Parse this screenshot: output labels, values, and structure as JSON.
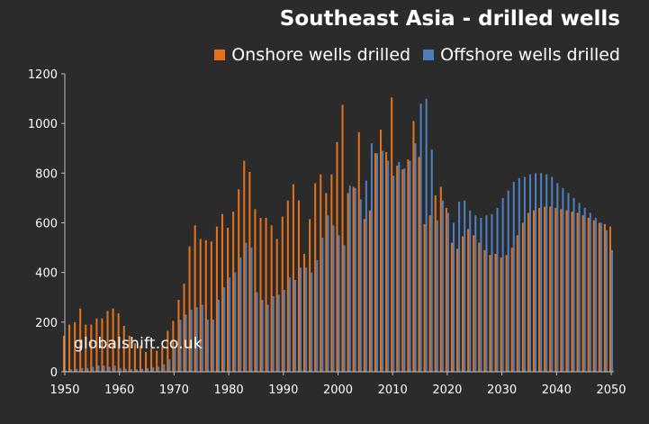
{
  "chart_data": {
    "type": "bar",
    "title": "Southeast Asia - drilled wells",
    "xlabel": "",
    "ylabel": "",
    "ylim": [
      0,
      1200
    ],
    "yticks": [
      0,
      200,
      400,
      600,
      800,
      1000,
      1200
    ],
    "xticks": [
      1950,
      1960,
      1970,
      1980,
      1990,
      2000,
      2010,
      2020,
      2030,
      2040,
      2050
    ],
    "legend_position": "top-right",
    "grid": false,
    "watermark": "globalshift.co.uk",
    "x": [
      1950,
      1951,
      1952,
      1953,
      1954,
      1955,
      1956,
      1957,
      1958,
      1959,
      1960,
      1961,
      1962,
      1963,
      1964,
      1965,
      1966,
      1967,
      1968,
      1969,
      1970,
      1971,
      1972,
      1973,
      1974,
      1975,
      1976,
      1977,
      1978,
      1979,
      1980,
      1981,
      1982,
      1983,
      1984,
      1985,
      1986,
      1987,
      1988,
      1989,
      1990,
      1991,
      1992,
      1993,
      1994,
      1995,
      1996,
      1997,
      1998,
      1999,
      2000,
      2001,
      2002,
      2003,
      2004,
      2005,
      2006,
      2007,
      2008,
      2009,
      2010,
      2011,
      2012,
      2013,
      2014,
      2015,
      2016,
      2017,
      2018,
      2019,
      2020,
      2021,
      2022,
      2023,
      2024,
      2025,
      2026,
      2027,
      2028,
      2029,
      2030,
      2031,
      2032,
      2033,
      2034,
      2035,
      2036,
      2037,
      2038,
      2039,
      2040,
      2041,
      2042,
      2043,
      2044,
      2045,
      2046,
      2047,
      2048,
      2049,
      2050
    ],
    "series": [
      {
        "name": "Onshore wells drilled",
        "color": "#e3711c",
        "values": [
          145,
          190,
          200,
          255,
          190,
          190,
          215,
          215,
          245,
          255,
          235,
          185,
          145,
          115,
          105,
          80,
          95,
          85,
          100,
          165,
          205,
          290,
          355,
          505,
          590,
          535,
          530,
          525,
          585,
          635,
          580,
          645,
          735,
          850,
          805,
          655,
          620,
          620,
          590,
          535,
          625,
          690,
          755,
          690,
          475,
          615,
          760,
          795,
          720,
          795,
          925,
          1075,
          720,
          745,
          965,
          615,
          650,
          880,
          975,
          885,
          1105,
          830,
          815,
          855,
          1010,
          865,
          595,
          630,
          710,
          745,
          660,
          520,
          495,
          545,
          575,
          550,
          520,
          490,
          470,
          475,
          460,
          470,
          500,
          550,
          600,
          640,
          650,
          660,
          665,
          665,
          660,
          655,
          650,
          645,
          640,
          630,
          620,
          610,
          600,
          595,
          585
        ]
      },
      {
        "name": "Offshore wells drilled",
        "color": "#4e7fbd",
        "values": [
          5,
          10,
          12,
          15,
          15,
          20,
          25,
          25,
          20,
          25,
          15,
          12,
          10,
          10,
          12,
          15,
          18,
          20,
          30,
          50,
          100,
          210,
          230,
          250,
          260,
          270,
          210,
          210,
          290,
          340,
          380,
          400,
          460,
          520,
          500,
          320,
          290,
          270,
          305,
          310,
          330,
          380,
          370,
          420,
          420,
          400,
          450,
          540,
          630,
          590,
          550,
          510,
          750,
          740,
          695,
          770,
          920,
          880,
          890,
          850,
          790,
          845,
          820,
          850,
          920,
          1080,
          1100,
          895,
          610,
          690,
          640,
          600,
          685,
          690,
          650,
          630,
          620,
          630,
          635,
          660,
          700,
          730,
          765,
          780,
          785,
          795,
          800,
          800,
          795,
          785,
          760,
          740,
          720,
          700,
          680,
          660,
          640,
          620,
          600,
          570,
          490
        ]
      }
    ]
  }
}
